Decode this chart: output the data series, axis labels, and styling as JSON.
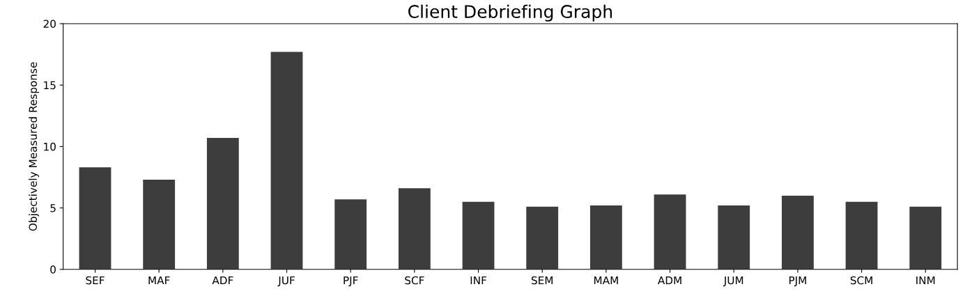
{
  "chart_data": {
    "type": "bar",
    "title": "Client Debriefing Graph",
    "ylabel": "Objectively Measured Response",
    "categories": [
      "SEF",
      "MAF",
      "ADF",
      "JUF",
      "PJF",
      "SCF",
      "INF",
      "SEM",
      "MAM",
      "ADM",
      "JUM",
      "PJM",
      "SCM",
      "INM"
    ],
    "values": [
      8.3,
      7.3,
      10.7,
      17.7,
      5.7,
      6.6,
      5.5,
      5.1,
      5.2,
      6.1,
      5.2,
      6.0,
      5.5,
      5.1
    ],
    "color": "#3d3d3d",
    "ylim": [
      0,
      20
    ],
    "yticks": [
      0,
      5,
      10,
      15,
      20
    ],
    "grid": false,
    "legend": false
  }
}
